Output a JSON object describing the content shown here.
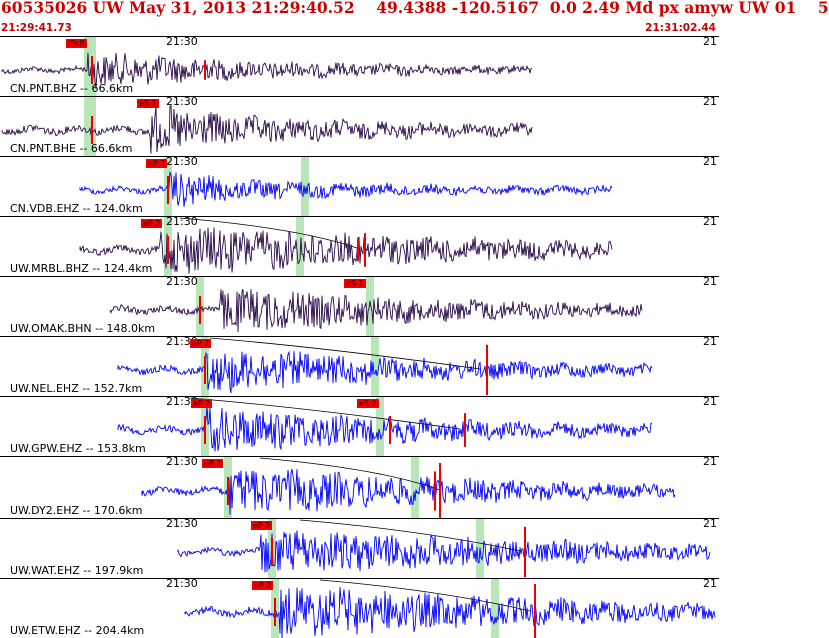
{
  "header": {
    "title": "60535026 UW May 31, 2013 21:29:40.52    49.4388 -120.5167  0.0 2.49 Md px amyw UW 01    5",
    "start_time": "21:29:41.73",
    "end_time": "21:31:02.44"
  },
  "time_mark_label": "21:30",
  "colors": {
    "accent": "#cc0000",
    "pick": "#ee0000",
    "dark_trace": "#2a0a4a",
    "blue_trace": "#0000ff",
    "marker_band": "#b8e6b8"
  },
  "traces": [
    {
      "station": "CN.PNT.BHZ -- 66.6km",
      "pick_label": "iPcB",
      "color": "dark"
    },
    {
      "station": "CN.PNT.BHE -- 66.6km",
      "pick_label": "eS 1",
      "color": "dark"
    },
    {
      "station": "CN.VDB.EHZ -- 124.0km",
      "pick_label": "eP 2",
      "color": "blue"
    },
    {
      "station": "UW.MRBL.BHZ -- 124.4km",
      "pick_label": "eP 2",
      "color": "dark"
    },
    {
      "station": "UW.OMAK.BHN -- 148.0km",
      "pick_label": "eS 1",
      "color": "dark"
    },
    {
      "station": "UW.NEL.EHZ -- 152.7km",
      "pick_label": "eP 2",
      "color": "blue"
    },
    {
      "station": "UW.GPW.EHZ -- 153.8km",
      "pick_label": "eP 2",
      "pick_label_2": "eS 2",
      "color": "blue"
    },
    {
      "station": "UW.DY2.EHZ -- 170.6km",
      "pick_label": "eP 2",
      "color": "blue"
    },
    {
      "station": "UW.WAT.EHZ -- 197.9km",
      "pick_label": "eP 2",
      "color": "blue"
    },
    {
      "station": "UW.ETW.EHZ -- 204.4km",
      "pick_label": "eP 2",
      "color": "blue"
    }
  ]
}
